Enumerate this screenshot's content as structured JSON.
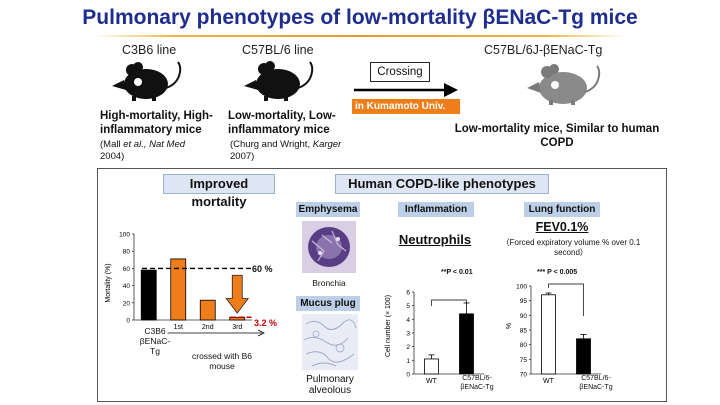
{
  "header": {
    "title": "Pulmonary phenotypes of low-mortality βENaC-Tg mice"
  },
  "strains": {
    "c3b6": {
      "label": "C3B6 line",
      "desc": "High-mortality, High-inflammatory mice",
      "cite_author": "(Mall ",
      "cite_etal": "et al., Nat Med",
      "cite_year": "2004)"
    },
    "c57": {
      "label": "C57BL/6 line",
      "desc": "Low-mortality, Low-inflammatory mice",
      "cite_author": "(Churg and Wright, ",
      "cite_journal": "Karger",
      "cite_year": "2007)"
    },
    "tg": {
      "label": "C57BL/6J-βENaC-Tg",
      "desc": "Low-mortality mice, Similar to human COPD"
    }
  },
  "crossing": {
    "label": "Crossing",
    "place_banner": "in Kumamoto Univ."
  },
  "mortality": {
    "header": "Improved mortality",
    "crossed_note": "crossed with B6 mouse",
    "line_60": "60 %",
    "line_3": "3.2 %",
    "cat_line1": "C3B6",
    "cat_line2": "βENaC-Tg"
  },
  "copd": {
    "header": "Human COPD-like phenotypes",
    "emphysema_tag": "Emphysema",
    "emphysema_caption": "Bronchia",
    "mucus_tag": "Mucus plug",
    "mucus_caption": "Pulmonary alveolous",
    "inflammation_tag": "Inflammation",
    "neutrophils": "Neutrophils",
    "lung_tag": "Lung function",
    "fev": "FEV0.1%",
    "fev_desc": "（Forced expiratory volume % over 0.1 second）",
    "inf_sig": "**P < 0.01",
    "lung_sig": "*** P < 0.005",
    "wt_line1": "C57BL/6-",
    "wt_line2": "βENaC-Tg"
  },
  "colors": {
    "title": "#1f2d8f",
    "orange": "#ef7d1a",
    "black": "#000000",
    "red": "#c00000",
    "banner": "#ef7d1a"
  },
  "chart_data": [
    {
      "type": "bar",
      "title": "Improved mortality",
      "categories": [
        "C3B6 βENaC-Tg",
        "1st",
        "2nd",
        "3rd"
      ],
      "values": [
        58,
        71,
        23,
        3.2
      ],
      "colors": [
        "#000000",
        "#ef7d1a",
        "#ef7d1a",
        "#ef7d1a"
      ],
      "ylabel": "Mortality (%)",
      "ylim": [
        0,
        100
      ],
      "yticks": [
        0,
        20,
        40,
        60,
        80,
        100
      ],
      "reference_lines": [
        60,
        3.2
      ]
    },
    {
      "type": "bar",
      "title": "Neutrophils",
      "categories": [
        "WT",
        "C57BL/6-βENaC-Tg"
      ],
      "values": [
        1.1,
        4.4
      ],
      "errors": [
        0.3,
        0.8
      ],
      "colors": [
        "#ffffff",
        "#000000"
      ],
      "ylabel": "Cell number (× 100)",
      "ylim": [
        0,
        6
      ],
      "yticks": [
        0,
        1,
        2,
        3,
        4,
        5,
        6
      ],
      "significance": "**P < 0.01"
    },
    {
      "type": "bar",
      "title": "FEV0.1%",
      "categories": [
        "WT",
        "C57BL/6-βENaC-Tg"
      ],
      "values": [
        97,
        82
      ],
      "errors": [
        0.6,
        1.5
      ],
      "colors": [
        "#ffffff",
        "#000000"
      ],
      "ylabel": "%",
      "ylim": [
        70,
        100
      ],
      "yticks": [
        70,
        75,
        80,
        85,
        90,
        95,
        100
      ],
      "significance": "*** P < 0.005"
    }
  ]
}
